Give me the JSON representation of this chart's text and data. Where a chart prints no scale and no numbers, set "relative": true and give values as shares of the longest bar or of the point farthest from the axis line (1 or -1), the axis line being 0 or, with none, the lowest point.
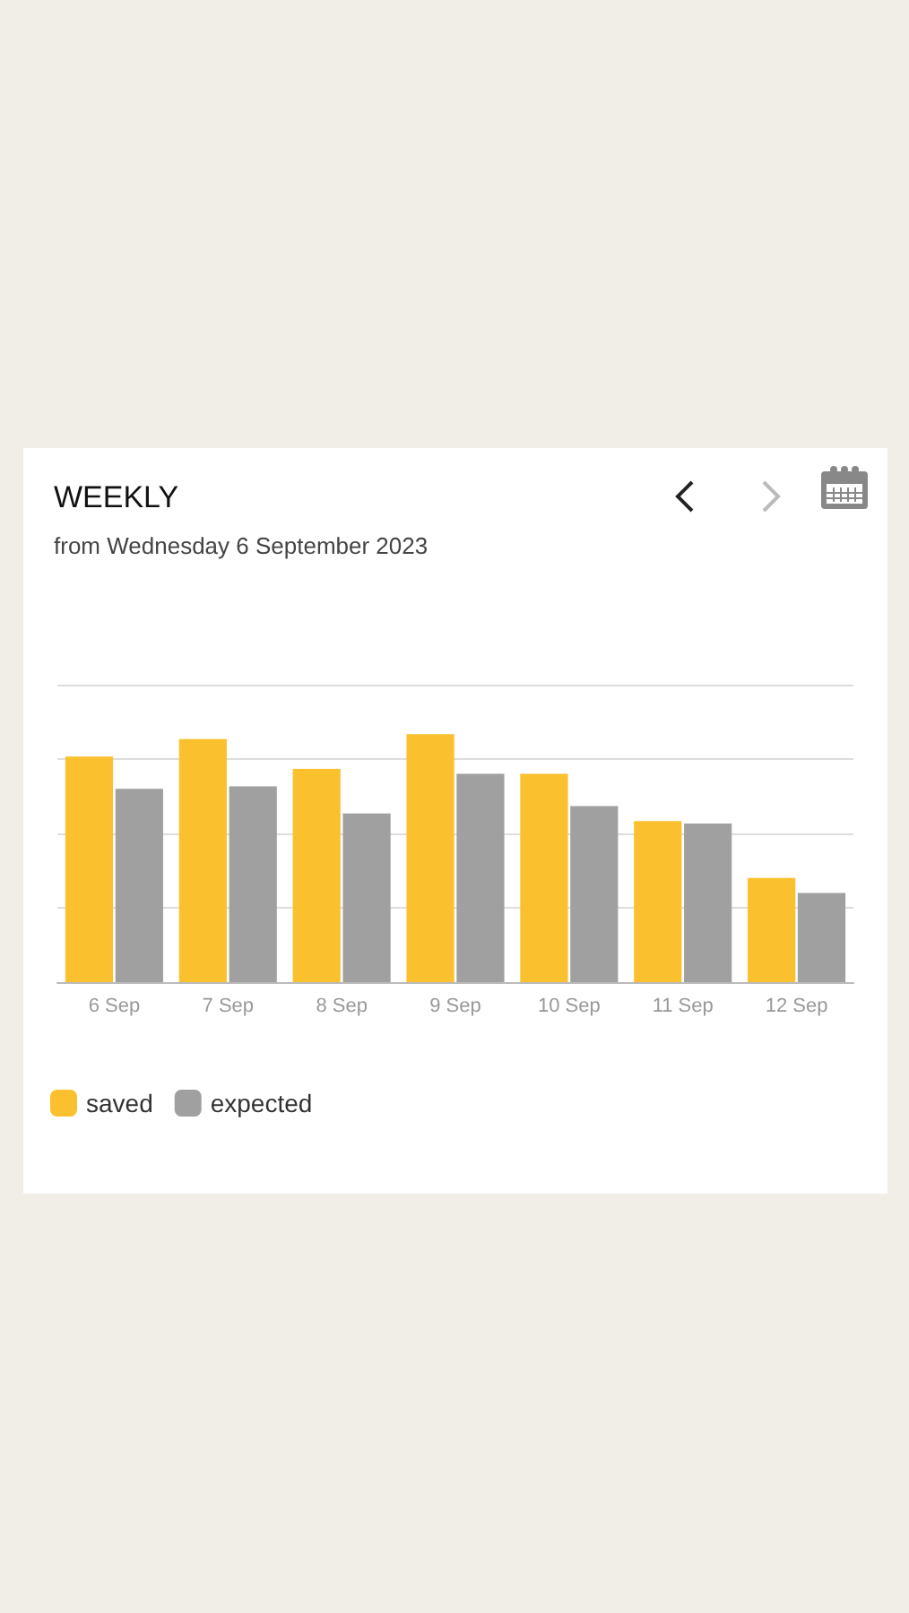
{
  "chart_data": {
    "type": "bar",
    "title": "WEEKLY",
    "subtitle": "from Wednesday 6 September 2023",
    "categories": [
      "6 Sep",
      "7 Sep",
      "8 Sep",
      "9 Sep",
      "10 Sep",
      "11 Sep",
      "12 Sep"
    ],
    "relative": true,
    "grid": "y",
    "legend": "bottom left",
    "series": [
      {
        "name": "saved",
        "color": "#fbc02d",
        "values": [
          0.91,
          0.98,
          0.86,
          1,
          0.84,
          0.65,
          0.42
        ]
      },
      {
        "name": "expected",
        "color": "#a0a0a0",
        "values": [
          0.78,
          0.79,
          0.68,
          0.84,
          0.71,
          0.64,
          0.36
        ]
      }
    ]
  }
}
